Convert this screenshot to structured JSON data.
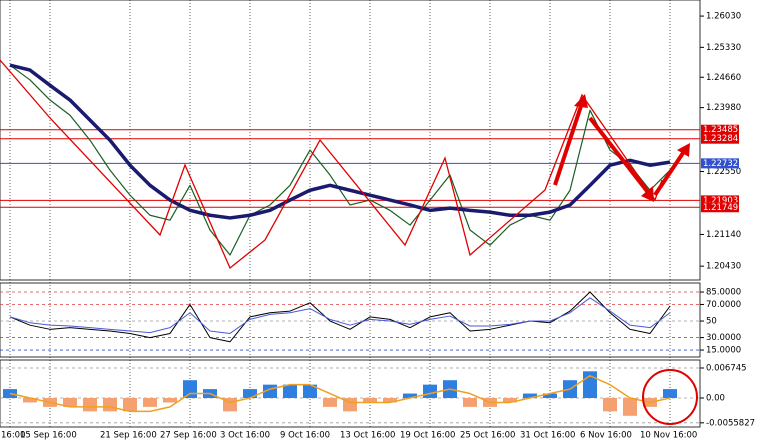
{
  "chart_data": [
    {
      "type": "line",
      "categories": [
        "16:00",
        null,
        "15 Sep 16:00",
        null,
        null,
        null,
        "21 Sep 16:00",
        null,
        null,
        "27 Sep 16:00",
        null,
        null,
        "3 Oct 16:00",
        null,
        null,
        "9 Oct 16:00",
        null,
        null,
        "13 Oct 16:00",
        null,
        null,
        "19 Oct 16:00",
        null,
        null,
        "25 Oct 16:00",
        null,
        null,
        "31 Oct 16:00",
        null,
        null,
        "6 Nov 16:00",
        null,
        null,
        "10 Nov 16:00",
        null
      ],
      "series": [
        {
          "color": "#1b5e20",
          "width": 1.2,
          "values": [
            1.2493,
            1.246,
            1.2415,
            1.2381,
            1.2325,
            1.2258,
            1.2202,
            1.2157,
            1.2146,
            1.2224,
            1.2124,
            1.2068,
            1.2157,
            1.218,
            1.2224,
            1.2303,
            1.2247,
            1.218,
            1.2191,
            1.2168,
            1.2135,
            1.2191,
            1.2247,
            1.2124,
            1.209,
            1.2135,
            1.2157,
            1.2146,
            1.2213,
            1.2392,
            1.2303,
            1.2269,
            1.2213,
            1.2258,
            null
          ]
        },
        {
          "color": "#1a1a6e",
          "width": 3.5,
          "values": [
            1.2493,
            1.2482,
            1.2448,
            1.2415,
            1.237,
            1.2325,
            1.2269,
            1.2224,
            1.2191,
            1.2168,
            1.2157,
            1.2151,
            1.2157,
            1.2168,
            1.2191,
            1.2213,
            1.2224,
            1.2213,
            1.2202,
            1.2191,
            1.218,
            1.2168,
            1.2173,
            1.2168,
            1.2164,
            1.2157,
            1.2157,
            1.2164,
            1.218,
            1.2224,
            1.2269,
            1.228,
            1.2269,
            1.2276,
            null
          ]
        }
      ],
      "ylim": [
        1.2012,
        1.2639
      ],
      "yticks": [
        {
          "value": 1.2603,
          "label": "1.26030"
        },
        {
          "value": 1.2533,
          "label": "1.25330"
        },
        {
          "value": 1.2466,
          "label": "1.24660"
        },
        {
          "value": 1.2398,
          "label": "1.23980"
        },
        {
          "value": 1.2255,
          "label": "1.22550"
        },
        {
          "value": 1.2114,
          "label": "1.21140"
        },
        {
          "value": 1.2043,
          "label": "1.20430"
        }
      ],
      "levels": [
        1.23485,
        1.23284,
        1.22732,
        1.21903,
        1.21749
      ],
      "level_colors": [
        "#e00000",
        "#e00000",
        "#3050d0",
        "#e00000",
        "#e00000"
      ],
      "grid": true
    },
    {
      "type": "line",
      "series": [
        {
          "color": "#000000",
          "width": 1,
          "values": [
            55,
            45,
            40,
            42,
            40,
            38,
            35,
            30,
            35,
            70,
            30,
            25,
            55,
            60,
            62,
            72,
            50,
            40,
            55,
            52,
            42,
            55,
            60,
            38,
            40,
            45,
            50,
            48,
            62,
            85,
            60,
            40,
            35,
            68,
            null
          ]
        },
        {
          "color": "#4a5ad8",
          "width": 1,
          "values": [
            55,
            48,
            45,
            44,
            42,
            40,
            38,
            36,
            42,
            60,
            38,
            35,
            52,
            58,
            60,
            65,
            52,
            45,
            52,
            50,
            46,
            52,
            56,
            44,
            44,
            46,
            50,
            50,
            60,
            78,
            62,
            45,
            42,
            60,
            null
          ]
        }
      ],
      "ylim": [
        6.6,
        95.9
      ],
      "yticks": [
        {
          "value": 85,
          "label": "85.0000"
        },
        {
          "value": 70,
          "label": "70.0000"
        },
        50,
        {
          "value": 30,
          "label": "30.0000"
        },
        {
          "value": 15,
          "label": "15.0000"
        }
      ],
      "tick_colors": [
        "#e04040",
        "#e04040",
        "#999999",
        "#3050d0",
        "#3050d0"
      ],
      "grid": true
    },
    {
      "type": "bar",
      "series": [
        {
          "type": "bar",
          "color": "#2f7fe0",
          "negative_color": "#f4a070",
          "values": [
            0.002,
            -0.001,
            -0.002,
            -0.002,
            -0.003,
            -0.003,
            -0.003,
            -0.002,
            -0.001,
            0.004,
            0.002,
            -0.003,
            0.002,
            0.003,
            0.003,
            0.003,
            -0.002,
            -0.003,
            -0.001,
            -0.001,
            0.001,
            0.003,
            0.004,
            -0.002,
            -0.002,
            -0.001,
            0.001,
            0.001,
            0.004,
            0.006,
            -0.003,
            -0.004,
            -0.002,
            0.002,
            null
          ]
        },
        {
          "type": "line",
          "color": "#f0a020",
          "width": 1.5,
          "values": [
            0.001,
            0,
            -0.001,
            -0.002,
            -0.002,
            -0.002,
            -0.003,
            -0.003,
            -0.002,
            0.001,
            0.001,
            -0.001,
            0,
            0.002,
            0.003,
            0.003,
            0.001,
            -0.001,
            -0.001,
            -0.001,
            0,
            0.001,
            0.002,
            0.001,
            -0.001,
            -0.001,
            0,
            0.001,
            0.002,
            0.005,
            0.003,
            0,
            -0.001,
            0,
            null
          ]
        }
      ],
      "ylim": [
        -0.00652,
        0.00854
      ],
      "yticks": [
        0.006745,
        {
          "value": 0,
          "label": "0.00"
        },
        -0.0055827
      ],
      "tick_colors": [
        "#999999",
        "#999999",
        "#999999"
      ],
      "grid": true
    }
  ]
}
